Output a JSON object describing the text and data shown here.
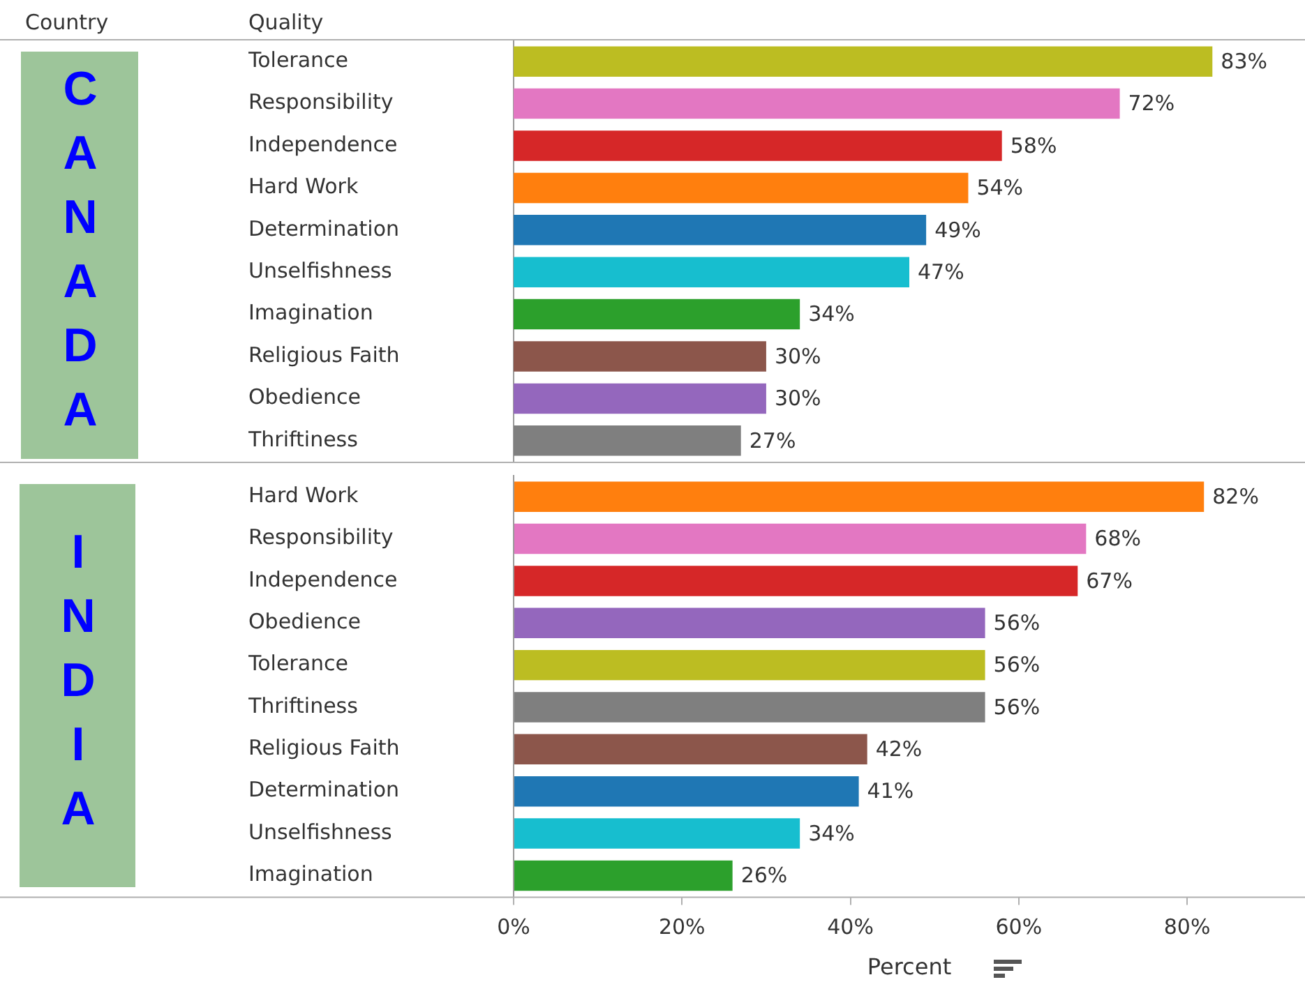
{
  "chart_data": [
    {
      "type": "bar",
      "orientation": "horizontal",
      "title": "CANADA",
      "ylabel": "Quality",
      "annotations": [
        "Country"
      ],
      "tick_labels": "y",
      "categories": [
        "Tolerance",
        "Responsibility",
        "Independence",
        "Hard Work",
        "Determination",
        "Unselfishness",
        "Imagination",
        "Religious Faith",
        "Obedience",
        "Thriftiness"
      ],
      "values": [
        83,
        72,
        58,
        54,
        49,
        47,
        34,
        30,
        30,
        27
      ],
      "value_labels": [
        "83%",
        "72%",
        "58%",
        "54%",
        "49%",
        "47%",
        "34%",
        "30%",
        "30%",
        "27%"
      ],
      "colors": [
        "#bcbd22",
        "#e377c2",
        "#d62728",
        "#ff7f0e",
        "#1f77b4",
        "#17becf",
        "#2ca02c",
        "#8c564b",
        "#9467bd",
        "#7f7f7f"
      ],
      "xlim": [
        0,
        94
      ]
    },
    {
      "type": "bar",
      "orientation": "horizontal",
      "title": "INDIA",
      "xlabel": "Percent",
      "categories": [
        "Hard Work",
        "Responsibility",
        "Independence",
        "Obedience",
        "Tolerance",
        "Thriftiness",
        "Religious Faith",
        "Determination",
        "Unselfishness",
        "Imagination"
      ],
      "values": [
        82,
        68,
        67,
        56,
        56,
        56,
        42,
        41,
        34,
        26
      ],
      "value_labels": [
        "82%",
        "68%",
        "67%",
        "56%",
        "56%",
        "56%",
        "42%",
        "41%",
        "34%",
        "26%"
      ],
      "colors": [
        "#ff7f0e",
        "#e377c2",
        "#d62728",
        "#9467bd",
        "#bcbd22",
        "#7f7f7f",
        "#8c564b",
        "#1f77b4",
        "#17becf",
        "#2ca02c"
      ],
      "xlim": [
        0,
        94
      ],
      "xticks": [
        {
          "value": 0,
          "label": "0%"
        },
        {
          "value": 20,
          "label": "20%"
        },
        {
          "value": 40,
          "label": "40%"
        },
        {
          "value": 60,
          "label": "60%"
        },
        {
          "value": 80,
          "label": "80%"
        }
      ]
    }
  ]
}
